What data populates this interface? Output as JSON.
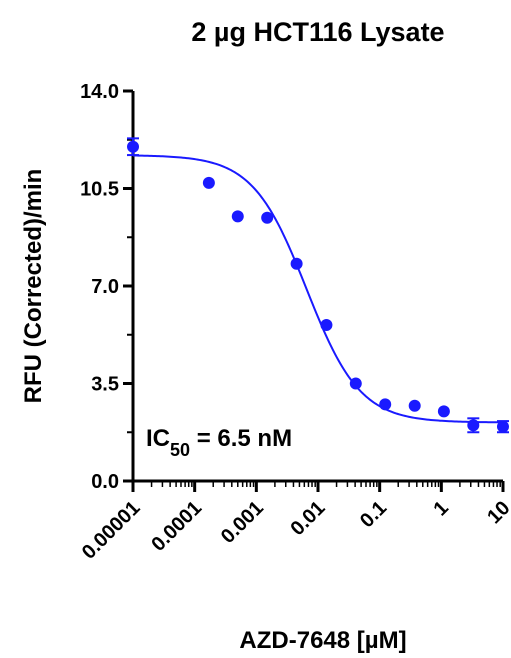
{
  "chart_data": {
    "type": "scatter",
    "title": "2 µg HCT116 Lysate",
    "xlabel": "AZD-7648 [µM]",
    "ylabel": "RFU (Corrected)/min",
    "x_scale": "log",
    "x_ticks": [
      1e-05,
      0.0001,
      0.001,
      0.01,
      0.1,
      1,
      10
    ],
    "x_tick_labels": [
      "0.00001",
      "0.0001",
      "0.001",
      "0.01",
      "0.1",
      "1",
      "10"
    ],
    "xlim": [
      1e-05,
      10
    ],
    "ylim": [
      0,
      14
    ],
    "y_ticks": [
      0,
      3.5,
      7,
      10.5,
      14
    ],
    "y_tick_labels": [
      "0.0",
      "3.5",
      "7.0",
      "10.5",
      "14.0"
    ],
    "grid": false,
    "colors": {
      "points": "#1a1aff",
      "curve": "#1a1aff"
    },
    "points": [
      {
        "x": 1e-05,
        "y": 12.0,
        "err": 0.3
      },
      {
        "x": 0.00017,
        "y": 10.7,
        "err": 0
      },
      {
        "x": 0.0005,
        "y": 9.5,
        "err": 0
      },
      {
        "x": 0.0015,
        "y": 9.45,
        "err": 0
      },
      {
        "x": 0.0045,
        "y": 7.8,
        "err": 0
      },
      {
        "x": 0.0137,
        "y": 5.6,
        "err": 0
      },
      {
        "x": 0.041,
        "y": 3.5,
        "err": 0
      },
      {
        "x": 0.123,
        "y": 2.75,
        "err": 0
      },
      {
        "x": 0.37,
        "y": 2.7,
        "err": 0
      },
      {
        "x": 1.1,
        "y": 2.5,
        "err": 0
      },
      {
        "x": 3.3,
        "y": 2.0,
        "err": 0.25
      },
      {
        "x": 10,
        "y": 1.95,
        "err": 0.2
      }
    ],
    "fit": {
      "model": "four-parameter logistic",
      "top": 11.7,
      "bottom": 2.1,
      "ic50": 0.0065,
      "hill": 1.0
    },
    "annotation": {
      "prefix": "IC",
      "subscript": "50",
      "suffix": " = 6.5 nM"
    }
  }
}
